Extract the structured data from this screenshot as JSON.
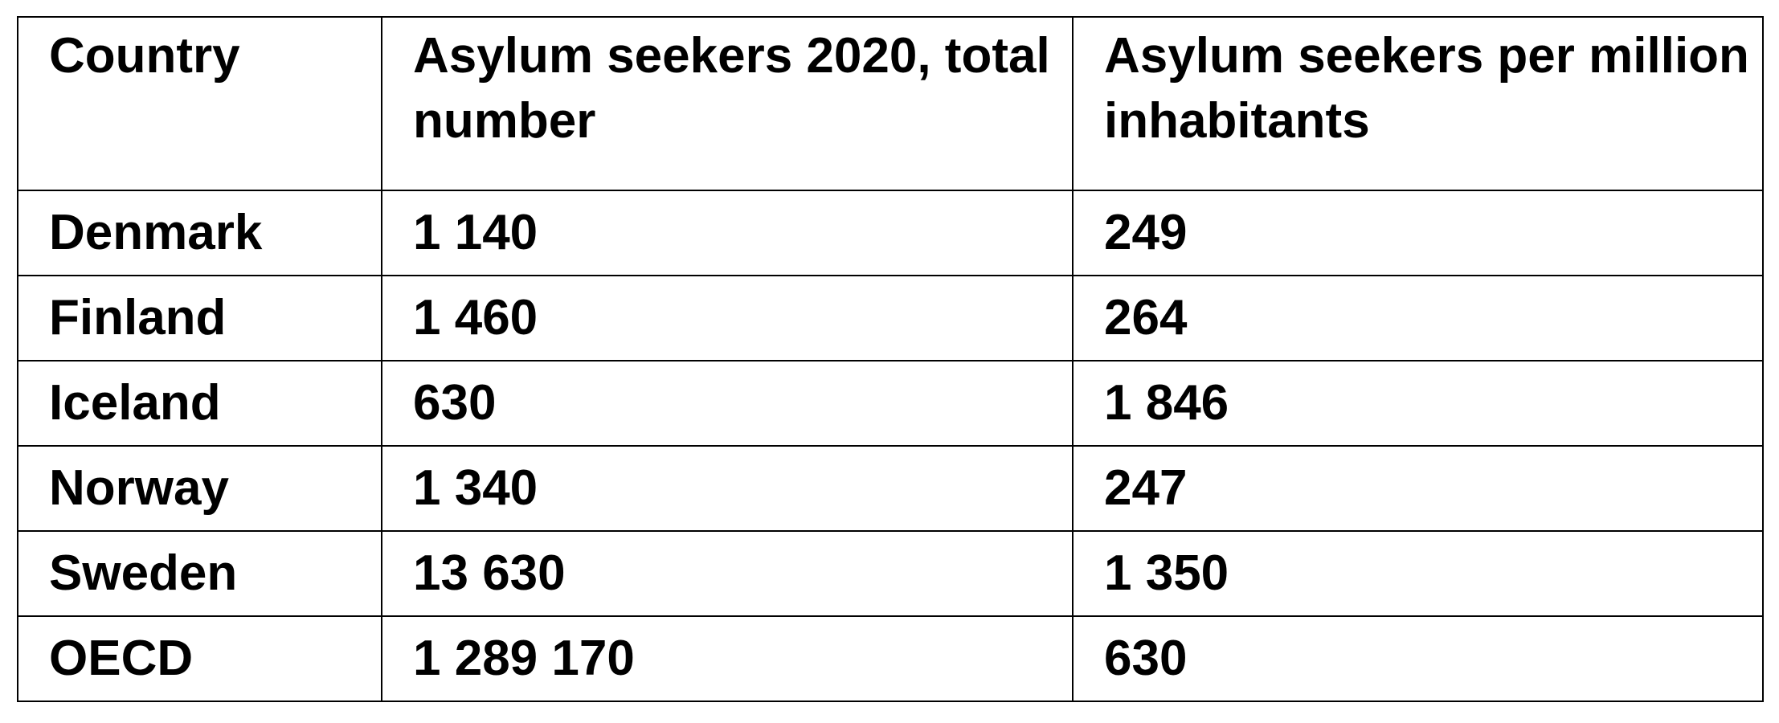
{
  "table": {
    "header": [
      "Country",
      "Asylum seekers 2020, total number",
      "Asylum seekers per million inhabitants"
    ],
    "rows": [
      [
        "Denmark",
        "1 140",
        "249"
      ],
      [
        "Finland",
        "1 460",
        "264"
      ],
      [
        "Iceland",
        "630",
        "1 846"
      ],
      [
        "Norway",
        "1 340",
        "247"
      ],
      [
        "Sweden",
        "13 630",
        "1 350"
      ],
      [
        "OECD",
        "1 289 170",
        "630"
      ]
    ]
  }
}
